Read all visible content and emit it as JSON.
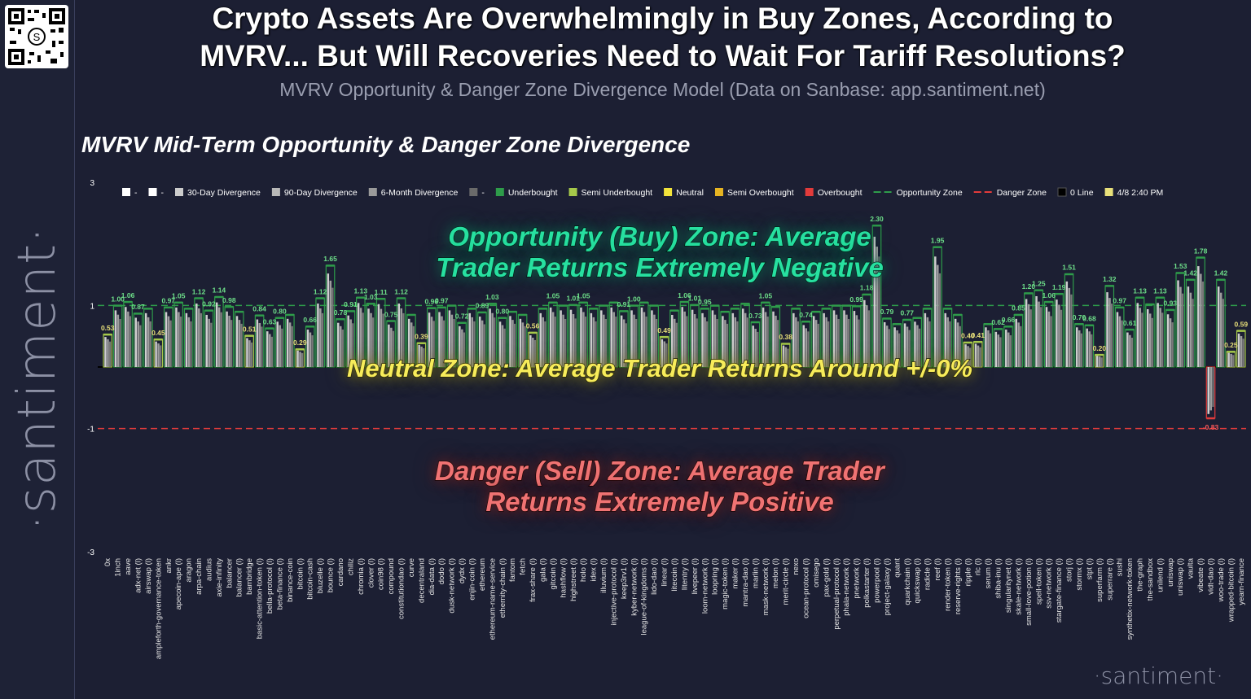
{
  "header": {
    "headline_line1": "Crypto Assets Are Overwhelmingly in Buy Zones, According to",
    "headline_line2": "MVRV... But Will Recoveries Need to Wait For Tariff Resolutions?",
    "subheadline": "MVRV Opportunity & Danger Zone Divergence Model (Data on Sanbase: app.santiment.net)"
  },
  "branding": {
    "side_logo": "·santiment·",
    "watermark": "·santiment·"
  },
  "overlays": {
    "opportunity_line1": "Opportunity (Buy) Zone: Average",
    "opportunity_line2": "Trader Returns Extremely Negative",
    "neutral": "Neutral Zone: Average Trader Returns Around +/-0%",
    "danger_line1": "Danger (Sell) Zone: Average Trader",
    "danger_line2": "Returns Extremely Positive"
  },
  "colors": {
    "background": "#1c1f33",
    "underbought": "#2e9c4a",
    "semi_underbought": "#a6c94a",
    "neutral": "#f2e33b",
    "semi_overbought": "#e6b422",
    "overbought": "#e23b3b",
    "opportunity_line": "#2e9c4a",
    "danger_line": "#e23b3b",
    "latest_marker": "#e8e07a"
  },
  "chart_data": {
    "type": "bar",
    "title": "MVRV Mid-Term Opportunity & Danger Zone Divergence",
    "ylim": [
      -3,
      3
    ],
    "yticks": [
      3,
      1,
      -1,
      -3
    ],
    "reference_lines": {
      "opportunity_zone": 1,
      "danger_zone": -1,
      "zero_line": 0
    },
    "legend": [
      {
        "label": "-",
        "color": "#ffffff",
        "kind": "box"
      },
      {
        "label": "-",
        "color": "#ffffff",
        "kind": "box"
      },
      {
        "label": "30-Day Divergence",
        "color": "#cccccc",
        "kind": "box"
      },
      {
        "label": "90-Day Divergence",
        "color": "#b8b8b8",
        "kind": "box"
      },
      {
        "label": "6-Month Divergence",
        "color": "#9a9a9a",
        "kind": "box"
      },
      {
        "label": "-",
        "color": "#6a6a6a",
        "kind": "box"
      },
      {
        "label": "Underbought",
        "color": "#2e9c4a",
        "kind": "box"
      },
      {
        "label": "Semi Underbought",
        "color": "#a6c94a",
        "kind": "box"
      },
      {
        "label": "Neutral",
        "color": "#f2e33b",
        "kind": "box"
      },
      {
        "label": "Semi Overbought",
        "color": "#e6b422",
        "kind": "box"
      },
      {
        "label": "Overbought",
        "color": "#e23b3b",
        "kind": "box"
      },
      {
        "label": "Opportunity Zone",
        "color": "#2e9c4a",
        "kind": "dash"
      },
      {
        "label": "Danger Zone",
        "color": "#e23b3b",
        "kind": "dash"
      },
      {
        "label": "0 Line",
        "color": "#000000",
        "kind": "box"
      },
      {
        "label": "4/8 2:40 PM",
        "color": "#e8e07a",
        "kind": "box"
      }
    ],
    "categories": [
      "0x",
      "1inch",
      "aave",
      "adx-net (l)",
      "airswap (l)",
      "ampleforth-governance-token",
      "ankr",
      "apecoin-ape (l)",
      "aragon",
      "arpa-chain",
      "audius",
      "axie-infinity",
      "balancer",
      "balancer (l)",
      "bambridge",
      "basic-attention-token (l)",
      "bella-protocol (l)",
      "beta-finance (l)",
      "binance-coin",
      "bitcoin (l)",
      "bitcoin-cash",
      "bluzelle (l)",
      "bounce (l)",
      "cardano",
      "chiliz",
      "chromia (l)",
      "clover (l)",
      "coin98 (l)",
      "compound",
      "constitutiondao (l)",
      "curve",
      "decentraland",
      "dia-data (l)",
      "dodo (l)",
      "dusk-network (l)",
      "dydx (l)",
      "enjin-coin (l)",
      "ethereum",
      "ethereum-name-service",
      "ethernity-chain (l)",
      "fantom",
      "fetch",
      "frax-share (l)",
      "gala (l)",
      "gitcoin (l)",
      "hashflow (l)",
      "highstreet (l)",
      "holo (l)",
      "idex (l)",
      "illuvium (l)",
      "injective-protocol (l)",
      "keep3rv1 (l)",
      "kyber-network (l)",
      "league-of-kingdoms (l)",
      "lido-dao (l)",
      "linear (l)",
      "litecoin (l)",
      "litentry (l)",
      "livepeer (l)",
      "loom-network (l)",
      "loopring (l)",
      "magic-token (l)",
      "maker (l)",
      "mantra-dao (l)",
      "marlin (l)",
      "mask-network (l)",
      "melon (l)",
      "merit-circle (l)",
      "nexo",
      "ocean-protocol (l)",
      "omisego",
      "pax-gold (l)",
      "perpetual-protocol (l)",
      "phala-network (l)",
      "pnetwork (l)",
      "polkastarter (l)",
      "powerpool (l)",
      "project-galaxy (l)",
      "quant",
      "quarkchain (l)",
      "quickswap (l)",
      "radicle (l)",
      "reef (l)",
      "render-token (l)",
      "reserve-rights (l)",
      "ripple (l)",
      "rlc (l)",
      "serum (l)",
      "shiba-inu (l)",
      "singularitynet (l)",
      "skale-network (l)",
      "small-love-potion (l)",
      "spell-token (l)",
      "ssv-network (l)",
      "stargate-finance (l)",
      "storj (l)",
      "stormx (l)",
      "stpt (l)",
      "superfarm (l)",
      "superrare (l)",
      "sushi",
      "synthetix-network-token",
      "the-graph",
      "the-sandbox",
      "unilend (l)",
      "uniswap",
      "uniswap (l)",
      "vaulta",
      "vibeate (l)",
      "vidt-dao (l)",
      "woo-trade (l)",
      "wrapped-bitcoin (l)",
      "yearn-finance"
    ],
    "series": [
      {
        "name": "30-Day Divergence",
        "values": [
          0.53,
          1.0,
          1.06,
          0.87,
          0.95,
          0.45,
          0.97,
          1.05,
          0.95,
          1.12,
          0.92,
          1.14,
          0.98,
          0.9,
          0.51,
          0.84,
          0.63,
          0.8,
          0.85,
          0.29,
          0.66,
          1.12,
          1.65,
          0.78,
          0.91,
          1.13,
          1.03,
          1.11,
          0.75,
          1.12,
          0.85,
          0.39,
          0.96,
          0.97,
          1.0,
          0.72,
          0.95,
          0.89,
          1.03,
          0.8,
          0.9,
          0.85,
          0.56,
          0.95,
          1.05,
          1.0,
          1.01,
          1.05,
          0.95,
          1.0,
          1.05,
          0.91,
          1.0,
          1.05,
          1.0,
          0.49,
          0.92,
          1.06,
          1.01,
          0.95,
          1.0,
          0.9,
          0.95,
          1.03,
          0.73,
          1.05,
          0.98,
          0.38,
          0.95,
          0.74,
          0.9,
          0.95,
          1.0,
          1.0,
          0.99,
          1.18,
          2.3,
          0.79,
          0.7,
          0.77,
          0.8,
          0.95,
          1.95,
          0.95,
          0.85,
          0.4,
          0.41,
          0.7,
          0.62,
          0.66,
          0.85,
          1.2,
          1.25,
          1.06,
          1.19,
          1.51,
          0.7,
          0.68,
          0.2,
          1.32,
          0.97,
          0.61,
          1.13,
          1.02,
          1.13,
          0.93,
          1.53,
          1.42,
          1.78,
          -0.83,
          1.42,
          0.25,
          0.59
        ]
      }
    ],
    "color_category": [
      "semi_underbought",
      "underbought",
      "underbought",
      "underbought",
      "underbought",
      "semi_underbought",
      "underbought",
      "underbought",
      "underbought",
      "underbought",
      "underbought",
      "underbought",
      "underbought",
      "underbought",
      "semi_underbought",
      "underbought",
      "underbought",
      "underbought",
      "underbought",
      "semi_underbought",
      "underbought",
      "underbought",
      "underbought",
      "underbought",
      "underbought",
      "underbought",
      "underbought",
      "underbought",
      "underbought",
      "underbought",
      "underbought",
      "semi_underbought",
      "underbought",
      "underbought",
      "underbought",
      "underbought",
      "underbought",
      "underbought",
      "underbought",
      "underbought",
      "underbought",
      "underbought",
      "semi_underbought",
      "underbought",
      "underbought",
      "underbought",
      "underbought",
      "underbought",
      "underbought",
      "underbought",
      "underbought",
      "underbought",
      "underbought",
      "underbought",
      "underbought",
      "semi_underbought",
      "underbought",
      "underbought",
      "underbought",
      "underbought",
      "underbought",
      "underbought",
      "underbought",
      "underbought",
      "underbought",
      "underbought",
      "underbought",
      "semi_underbought",
      "underbought",
      "underbought",
      "underbought",
      "underbought",
      "underbought",
      "underbought",
      "underbought",
      "underbought",
      "underbought",
      "underbought",
      "underbought",
      "underbought",
      "underbought",
      "underbought",
      "underbought",
      "underbought",
      "underbought",
      "semi_underbought",
      "semi_underbought",
      "underbought",
      "underbought",
      "underbought",
      "underbought",
      "underbought",
      "underbought",
      "underbought",
      "underbought",
      "underbought",
      "underbought",
      "underbought",
      "semi_underbought",
      "underbought",
      "underbought",
      "underbought",
      "underbought",
      "underbought",
      "underbought",
      "underbought",
      "underbought",
      "underbought",
      "underbought",
      "overbought",
      "underbought",
      "semi_underbought",
      "semi_underbought"
    ],
    "labeled_indices": [
      0,
      1,
      2,
      3,
      5,
      6,
      7,
      9,
      10,
      11,
      12,
      14,
      15,
      16,
      17,
      19,
      20,
      21,
      22,
      23,
      24,
      25,
      26,
      27,
      28,
      29,
      31,
      32,
      33,
      35,
      37,
      38,
      39,
      42,
      44,
      46,
      47,
      51,
      52,
      55,
      57,
      58,
      59,
      64,
      65,
      67,
      69,
      74,
      75,
      76,
      77,
      79,
      82,
      85,
      86,
      88,
      89,
      90,
      91,
      92,
      93,
      94,
      95,
      96,
      97,
      98,
      99,
      100,
      101,
      102,
      104,
      105,
      106,
      107,
      108,
      109,
      110,
      111,
      112
    ]
  }
}
